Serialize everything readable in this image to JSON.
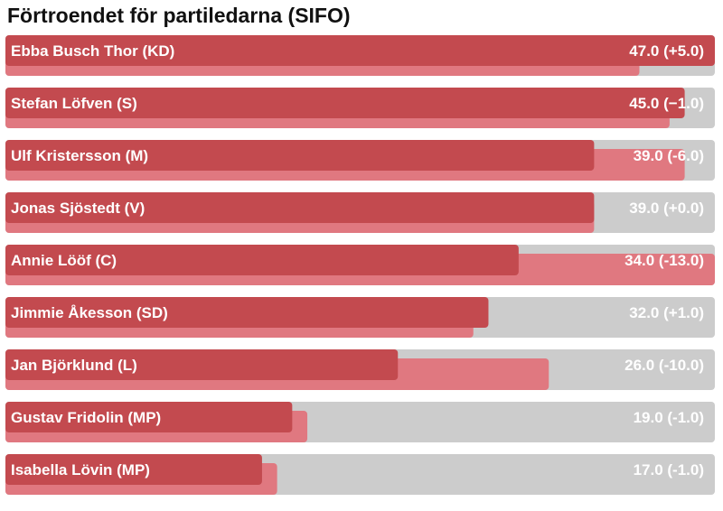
{
  "chart_data": {
    "type": "bar",
    "orientation": "horizontal",
    "title": "Förtroendet för partiledarna (SIFO)",
    "xlim": [
      0,
      47
    ],
    "categories": [
      "Ebba Busch Thor (KD)",
      "Stefan Löfven (S)",
      "Ulf Kristersson (M)",
      "Jonas Sjöstedt (V)",
      "Annie Lööf (C)",
      "Jimmie Åkesson (SD)",
      "Jan Björklund (L)",
      "Gustav Fridolin (MP)",
      "Isabella Lövin (MP)"
    ],
    "series": [
      {
        "values": [
          47.0,
          45.0,
          39.0,
          39.0,
          34.0,
          32.0,
          26.0,
          19.0,
          17.0
        ]
      },
      {
        "values": [
          42.0,
          44.0,
          45.0,
          39.0,
          47.0,
          31.0,
          36.0,
          20.0,
          18.0
        ]
      }
    ],
    "value_labels": [
      "47.0 (+5.0)",
      "45.0 (−1.0)",
      "39.0 (-6.0)",
      "39.0 (+0.0)",
      "34.0 (-13.0)",
      "32.0 (+1.0)",
      "26.0 (-10.0)",
      "19.0 (-1.0)",
      "17.0 (-1.0)"
    ],
    "colors": {
      "current": "#c34a4f",
      "previous": "#e07880",
      "track": "#cccccc",
      "text": "#ffffff"
    }
  }
}
